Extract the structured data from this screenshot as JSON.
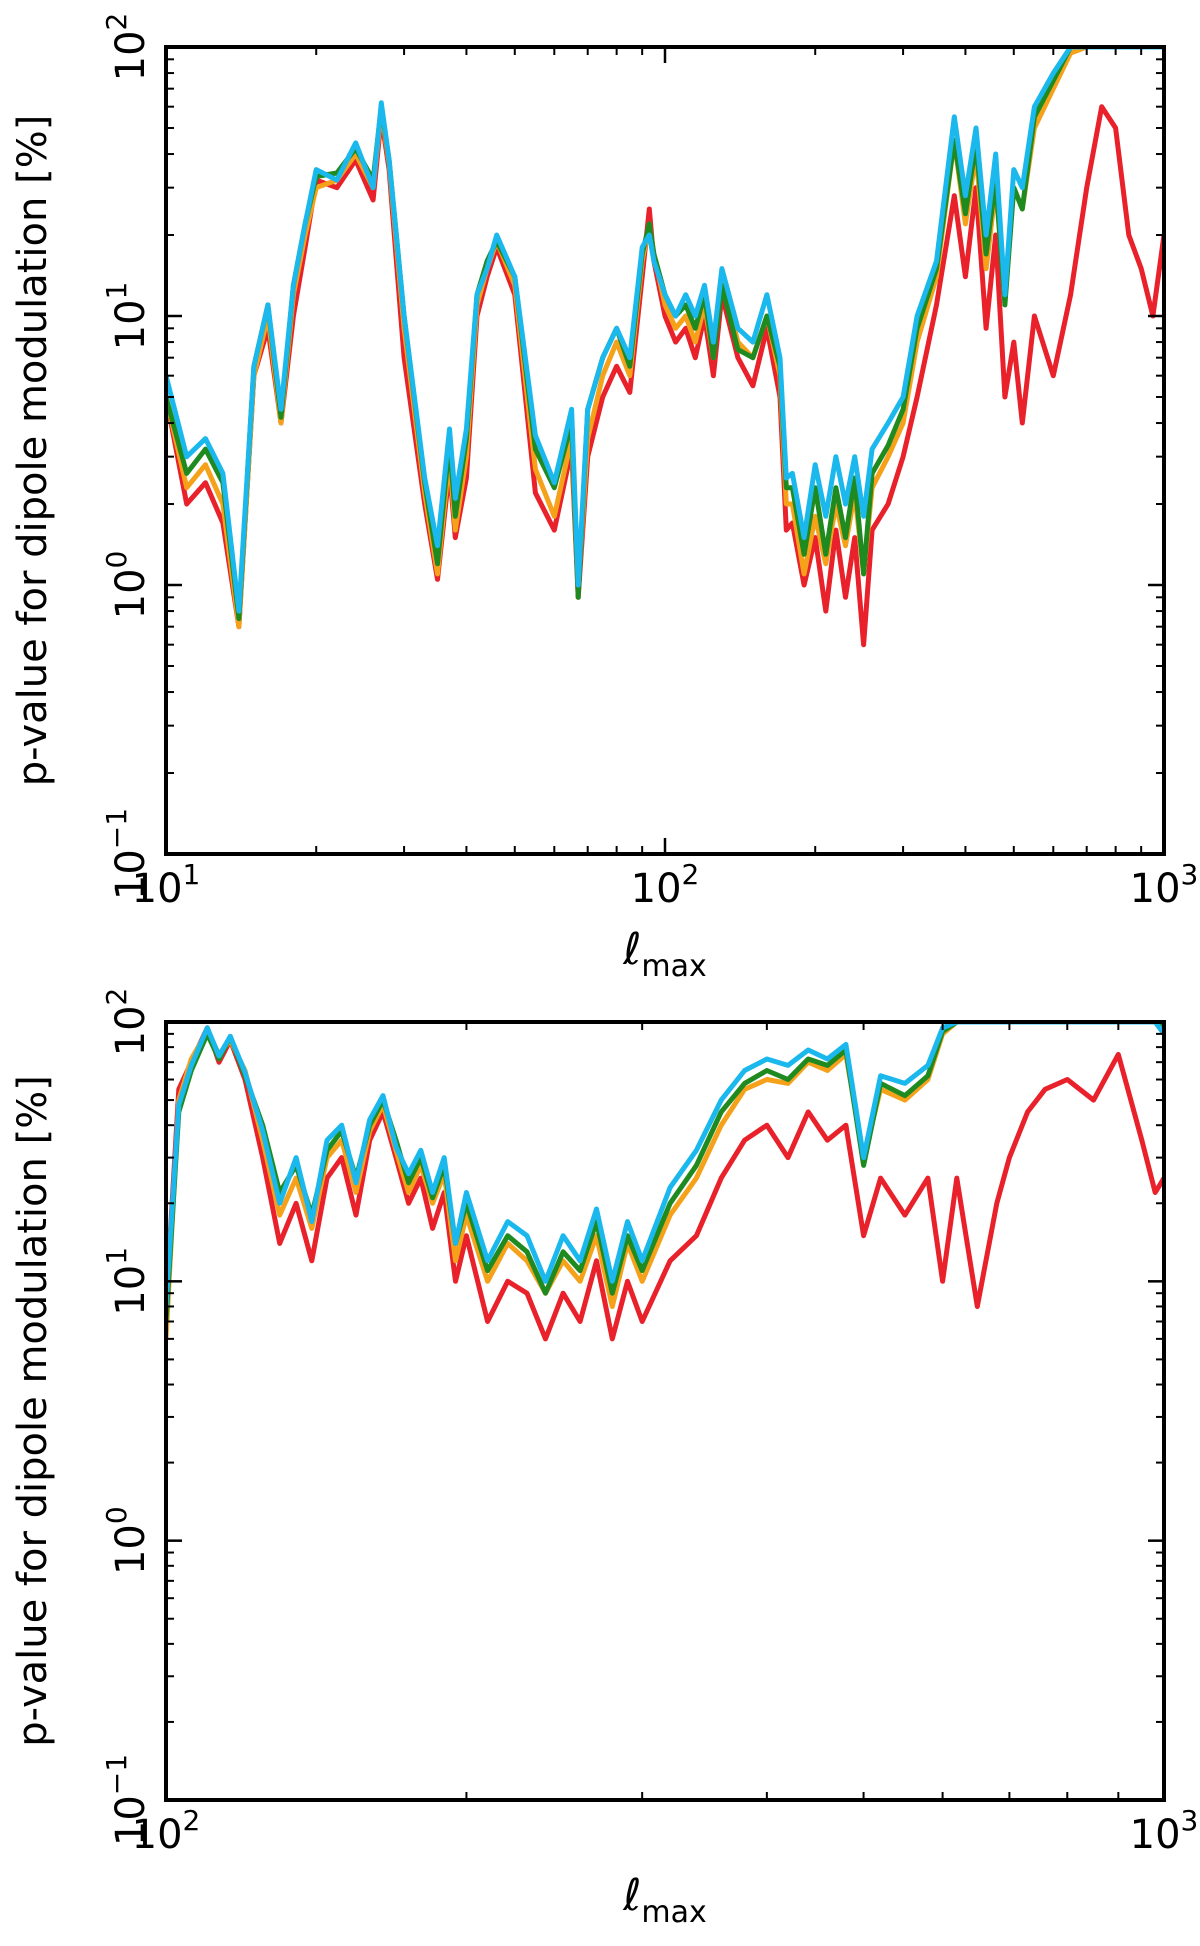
{
  "chart_data": [
    {
      "type": "line",
      "title": "",
      "xlabel": "ℓ",
      "xlabel_sub": "max",
      "ylabel": "p-value for dipole modulation [%]",
      "xscale": "log",
      "yscale": "log",
      "xlim": [
        10,
        1000
      ],
      "ylim": [
        0.1,
        100
      ],
      "x_ticks": [
        {
          "value": 10,
          "base": "10",
          "exp": "1"
        },
        {
          "value": 100,
          "base": "10",
          "exp": "2"
        },
        {
          "value": 1000,
          "base": "10",
          "exp": "3"
        }
      ],
      "y_ticks": [
        {
          "value": 0.1,
          "base": "10",
          "exp": "−1"
        },
        {
          "value": 1,
          "base": "10",
          "exp": "0"
        },
        {
          "value": 10,
          "base": "10",
          "exp": "1"
        },
        {
          "value": 100,
          "base": "10",
          "exp": "2"
        }
      ],
      "x": [
        10,
        11,
        12,
        13,
        14,
        15,
        16,
        17,
        18,
        19,
        20,
        22,
        24,
        26,
        27,
        28,
        30,
        33,
        35,
        37,
        38,
        40,
        42,
        44,
        46,
        50,
        55,
        60,
        65,
        67,
        70,
        75,
        80,
        85,
        90,
        93,
        95,
        100,
        105,
        110,
        115,
        120,
        125,
        130,
        140,
        150,
        160,
        170,
        175,
        180,
        190,
        200,
        210,
        220,
        230,
        240,
        250,
        260,
        280,
        300,
        320,
        350,
        380,
        400,
        420,
        440,
        460,
        480,
        500,
        520,
        550,
        600,
        650,
        700,
        750,
        800,
        850,
        900,
        950,
        1000
      ],
      "series": [
        {
          "name": "red",
          "color": "#e8212a",
          "values": [
            5,
            2,
            2.4,
            1.7,
            0.7,
            6,
            9,
            4,
            10,
            18,
            32,
            30,
            38,
            27,
            55,
            35,
            7,
            2,
            1.05,
            2.7,
            1.5,
            2.5,
            10,
            14,
            18,
            12,
            2.2,
            1.6,
            3.2,
            0.9,
            3,
            5,
            6.5,
            5.2,
            14,
            25,
            16,
            10,
            8,
            9,
            7,
            10,
            6,
            12,
            7,
            5.5,
            9,
            5,
            1.6,
            1.7,
            1,
            1.5,
            0.8,
            1.6,
            0.9,
            1.5,
            0.6,
            1.6,
            2,
            3,
            5,
            11,
            28,
            14,
            30,
            9,
            20,
            5,
            8,
            4,
            10,
            6,
            12,
            30,
            60,
            50,
            20,
            15,
            10,
            20
          ]
        },
        {
          "name": "orange",
          "color": "#f5a11a",
          "values": [
            5,
            2.3,
            2.8,
            2,
            0.7,
            6,
            10,
            4,
            12,
            20,
            30,
            32,
            40,
            30,
            58,
            37,
            9,
            2.2,
            1.1,
            3,
            1.6,
            3,
            11,
            15,
            19,
            13,
            2.7,
            1.8,
            3.5,
            0.95,
            3.5,
            6,
            8,
            6,
            16,
            22,
            17,
            11,
            9,
            10,
            8,
            11,
            7,
            14,
            8,
            7,
            10,
            6,
            2,
            2,
            1.1,
            1.8,
            1.2,
            2,
            1.4,
            2.2,
            1.1,
            2.3,
            3,
            4,
            8,
            14,
            45,
            22,
            40,
            15,
            30,
            12,
            30,
            25,
            50,
            70,
            95,
            100,
            100,
            100,
            100,
            100,
            100,
            100
          ]
        },
        {
          "name": "green",
          "color": "#1f8a1f",
          "values": [
            5,
            2.6,
            3.2,
            2.4,
            0.75,
            6.5,
            11,
            4.2,
            13,
            22,
            33,
            34,
            42,
            32,
            60,
            38,
            10,
            2.4,
            1.2,
            3.4,
            1.8,
            3.5,
            12,
            16,
            19,
            14,
            3.2,
            2.3,
            4,
            0.9,
            4.5,
            7,
            9,
            6.5,
            17,
            22,
            17,
            12,
            10,
            11,
            9,
            12,
            7,
            13,
            7.5,
            7,
            10,
            6.5,
            2.3,
            2.3,
            1.3,
            2.3,
            1.3,
            2.3,
            1.5,
            2.5,
            1.1,
            2.6,
            3.3,
            4.5,
            9,
            15,
            45,
            24,
            44,
            17,
            32,
            11,
            30,
            25,
            55,
            75,
            100,
            100,
            100,
            100,
            100,
            100,
            100,
            100
          ]
        },
        {
          "name": "cyan",
          "color": "#1bb8ee",
          "values": [
            6,
            3,
            3.5,
            2.6,
            0.8,
            6.5,
            11,
            4.5,
            13,
            22,
            35,
            32,
            44,
            30,
            62,
            38,
            10,
            2.5,
            1.4,
            3.8,
            2.1,
            3.8,
            12,
            15,
            20,
            14,
            3.6,
            2.4,
            4.5,
            1.0,
            4.5,
            7,
            9,
            7,
            18,
            20,
            16,
            12,
            10,
            12,
            10,
            13,
            8,
            15,
            9,
            8,
            12,
            7,
            2.5,
            2.6,
            1.5,
            2.8,
            1.8,
            3,
            2,
            3,
            1.8,
            3.2,
            4,
            5,
            10,
            16,
            55,
            28,
            50,
            20,
            40,
            12,
            35,
            30,
            60,
            80,
            100,
            100,
            100,
            100,
            100,
            100,
            100,
            100
          ]
        }
      ]
    },
    {
      "type": "line",
      "title": "",
      "xlabel": "ℓ",
      "xlabel_sub": "max",
      "ylabel": "p-value for dipole modulation [%]",
      "xscale": "log",
      "yscale": "log",
      "xlim": [
        100,
        1000
      ],
      "ylim": [
        0.1,
        100
      ],
      "x_ticks": [
        {
          "value": 100,
          "base": "10",
          "exp": "2"
        },
        {
          "value": 1000,
          "base": "10",
          "exp": "3"
        }
      ],
      "y_ticks": [
        {
          "value": 0.1,
          "base": "10",
          "exp": "−1"
        },
        {
          "value": 1,
          "base": "10",
          "exp": "0"
        },
        {
          "value": 10,
          "base": "10",
          "exp": "1"
        },
        {
          "value": 100,
          "base": "10",
          "exp": "2"
        }
      ],
      "x": [
        100,
        103,
        106,
        110,
        113,
        116,
        120,
        125,
        130,
        135,
        140,
        145,
        150,
        155,
        160,
        165,
        170,
        175,
        180,
        185,
        190,
        195,
        200,
        210,
        220,
        230,
        240,
        250,
        260,
        270,
        280,
        290,
        300,
        320,
        340,
        360,
        380,
        400,
        420,
        440,
        460,
        480,
        500,
        520,
        550,
        580,
        600,
        620,
        650,
        680,
        700,
        730,
        760,
        800,
        850,
        900,
        950,
        980,
        1000
      ],
      "series": [
        {
          "name": "red",
          "color": "#e8212a",
          "values": [
            8,
            55,
            70,
            95,
            70,
            85,
            60,
            30,
            14,
            20,
            12,
            25,
            30,
            18,
            35,
            45,
            30,
            20,
            25,
            16,
            22,
            10,
            15,
            7,
            10,
            9,
            6,
            9,
            7,
            12,
            6,
            10,
            7,
            12,
            15,
            25,
            35,
            40,
            30,
            45,
            35,
            40,
            15,
            25,
            18,
            25,
            10,
            25,
            8,
            20,
            30,
            45,
            55,
            60,
            50,
            75,
            35,
            22,
            25
          ]
        },
        {
          "name": "orange",
          "color": "#f5a11a",
          "values": [
            6,
            50,
            72,
            92,
            75,
            85,
            65,
            35,
            18,
            25,
            16,
            30,
            35,
            22,
            38,
            48,
            32,
            22,
            28,
            20,
            26,
            12,
            18,
            10,
            14,
            12,
            9,
            12,
            10,
            15,
            8,
            14,
            10,
            18,
            25,
            40,
            55,
            60,
            58,
            70,
            65,
            75,
            30,
            55,
            50,
            60,
            90,
            100,
            100,
            100,
            100,
            100,
            100,
            100,
            100,
            100,
            100,
            100,
            95
          ]
        },
        {
          "name": "green",
          "color": "#1f8a1f",
          "values": [
            7,
            45,
            65,
            90,
            72,
            88,
            62,
            40,
            22,
            28,
            18,
            32,
            38,
            25,
            40,
            50,
            35,
            24,
            30,
            21,
            28,
            14,
            20,
            11,
            15,
            13,
            9,
            13,
            11,
            17,
            9,
            15,
            11,
            20,
            28,
            45,
            58,
            65,
            60,
            72,
            68,
            78,
            28,
            58,
            52,
            62,
            92,
            100,
            100,
            100,
            100,
            100,
            100,
            100,
            100,
            100,
            100,
            100,
            98
          ]
        },
        {
          "name": "cyan",
          "color": "#1bb8ee",
          "values": [
            8,
            48,
            68,
            95,
            74,
            88,
            64,
            38,
            20,
            30,
            17,
            35,
            40,
            24,
            42,
            52,
            33,
            26,
            32,
            22,
            30,
            14,
            22,
            12,
            17,
            15,
            10,
            15,
            12,
            19,
            10,
            17,
            12,
            23,
            32,
            50,
            65,
            72,
            68,
            78,
            72,
            82,
            30,
            62,
            58,
            68,
            95,
            100,
            100,
            100,
            100,
            100,
            100,
            100,
            100,
            100,
            100,
            100,
            90
          ]
        }
      ]
    }
  ]
}
